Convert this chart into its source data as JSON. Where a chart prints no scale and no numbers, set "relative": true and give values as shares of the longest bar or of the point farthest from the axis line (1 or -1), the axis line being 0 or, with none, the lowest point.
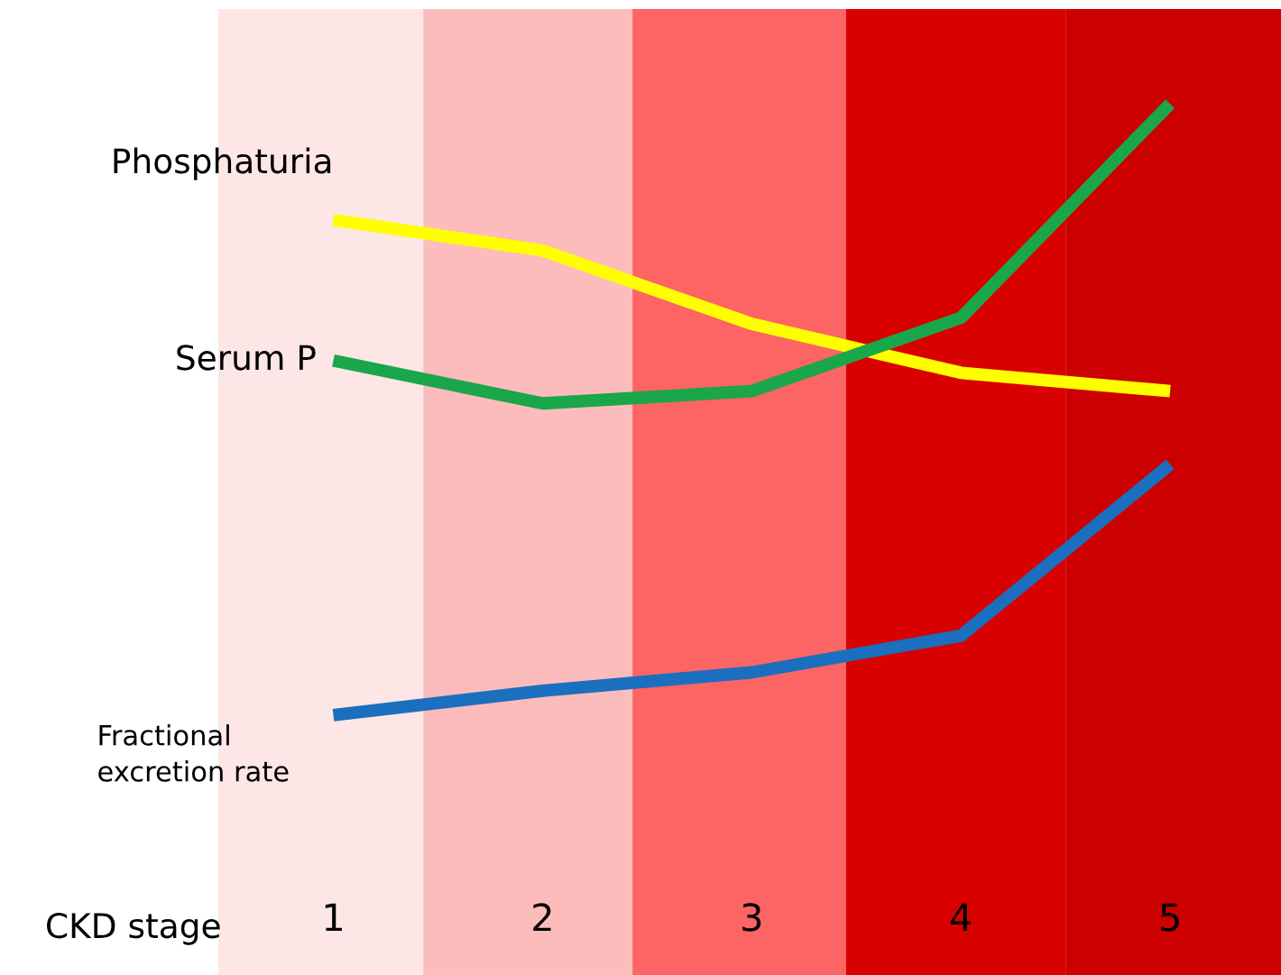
{
  "chart_data": {
    "type": "line",
    "relative": true,
    "xlabel": "CKD stage",
    "categories": [
      "1",
      "2",
      "3",
      "4",
      "5"
    ],
    "series": [
      {
        "name": "Phosphaturia",
        "color": "#ffff00",
        "values": [
          0.81,
          0.76,
          0.64,
          0.56,
          0.53
        ]
      },
      {
        "name": "Serum P",
        "color": "#1aa64a",
        "values": [
          0.58,
          0.51,
          0.53,
          0.65,
          1.0
        ]
      },
      {
        "name": "Fractional\nexcretion rate",
        "color": "#1a6fbf",
        "values": [
          0,
          0.04,
          0.07,
          0.13,
          0.41
        ]
      }
    ],
    "grid": false,
    "legend": false,
    "marker": "none",
    "line_style": "solid"
  }
}
